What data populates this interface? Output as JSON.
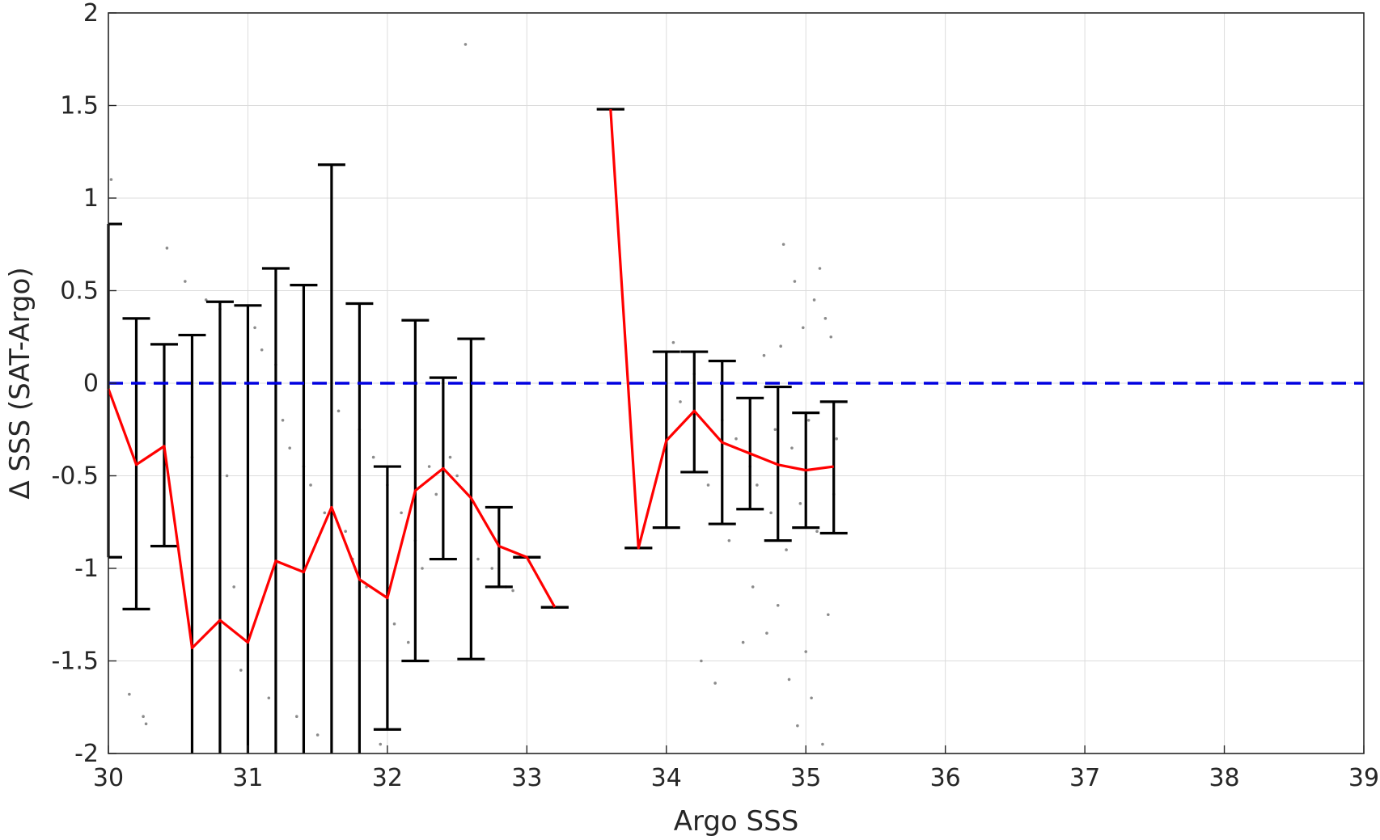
{
  "chart_data": {
    "type": "scatter",
    "title": "",
    "xlabel": "Argo SSS",
    "ylabel": "Δ SSS (SAT-Argo)",
    "xlim": [
      30,
      39
    ],
    "ylim": [
      -2,
      2
    ],
    "xticks": [
      "30",
      "31",
      "32",
      "33",
      "34",
      "35",
      "36",
      "37",
      "38",
      "39"
    ],
    "yticks": [
      "-2",
      "-1.5",
      "-1",
      "-0.5",
      "0",
      "0.5",
      "1",
      "1.5",
      "2"
    ],
    "grid": true,
    "legend": "none",
    "colors": {
      "scatter": "#8c8c8c",
      "mean_line": "#ff0000",
      "error_bars": "#000000",
      "reference_line": "#0000e0",
      "grid": "#dcdcdc",
      "axis": "#262626"
    },
    "reference_line": {
      "y": 0,
      "style": "dashed"
    },
    "mean_line": {
      "segments": [
        [
          {
            "x": 30.0,
            "y": -0.03
          },
          {
            "x": 30.2,
            "y": -0.44
          },
          {
            "x": 30.4,
            "y": -0.34
          },
          {
            "x": 30.6,
            "y": -1.43
          },
          {
            "x": 30.8,
            "y": -1.28
          },
          {
            "x": 31.0,
            "y": -1.4
          },
          {
            "x": 31.2,
            "y": -0.96
          },
          {
            "x": 31.4,
            "y": -1.02
          },
          {
            "x": 31.6,
            "y": -0.67
          },
          {
            "x": 31.8,
            "y": -1.06
          },
          {
            "x": 32.0,
            "y": -1.16
          },
          {
            "x": 32.2,
            "y": -0.58
          },
          {
            "x": 32.4,
            "y": -0.46
          },
          {
            "x": 32.6,
            "y": -0.62
          },
          {
            "x": 32.8,
            "y": -0.88
          },
          {
            "x": 33.0,
            "y": -0.94
          },
          {
            "x": 33.2,
            "y": -1.21
          }
        ],
        [
          {
            "x": 33.6,
            "y": 1.48
          },
          {
            "x": 33.8,
            "y": -0.89
          },
          {
            "x": 34.0,
            "y": -0.31
          },
          {
            "x": 34.2,
            "y": -0.15
          },
          {
            "x": 34.4,
            "y": -0.32
          },
          {
            "x": 34.6,
            "y": -0.38
          },
          {
            "x": 34.8,
            "y": -0.44
          },
          {
            "x": 35.0,
            "y": -0.47
          },
          {
            "x": 35.2,
            "y": -0.45
          }
        ]
      ]
    },
    "error_bars": [
      {
        "x": 30.0,
        "low": -0.94,
        "high": 0.86
      },
      {
        "x": 30.2,
        "low": -1.22,
        "high": 0.35
      },
      {
        "x": 30.4,
        "low": -0.88,
        "high": 0.21
      },
      {
        "x": 30.6,
        "low": -2.0,
        "high": 0.26
      },
      {
        "x": 30.8,
        "low": -2.0,
        "high": 0.44
      },
      {
        "x": 31.0,
        "low": -2.0,
        "high": 0.42
      },
      {
        "x": 31.2,
        "low": -2.0,
        "high": 0.62
      },
      {
        "x": 31.4,
        "low": -2.0,
        "high": 0.53
      },
      {
        "x": 31.6,
        "low": -2.0,
        "high": 1.18
      },
      {
        "x": 31.8,
        "low": -2.0,
        "high": 0.43
      },
      {
        "x": 32.0,
        "low": -1.87,
        "high": -0.45
      },
      {
        "x": 32.2,
        "low": -1.5,
        "high": 0.34
      },
      {
        "x": 32.4,
        "low": -0.95,
        "high": 0.03
      },
      {
        "x": 32.6,
        "low": -1.49,
        "high": 0.24
      },
      {
        "x": 32.8,
        "low": -1.1,
        "high": -0.67
      },
      {
        "x": 33.0,
        "low": -0.94,
        "high": -0.94
      },
      {
        "x": 33.2,
        "low": -1.21,
        "high": -1.21
      },
      {
        "x": 33.6,
        "low": 1.48,
        "high": 1.48
      },
      {
        "x": 33.8,
        "low": -0.89,
        "high": -0.89
      },
      {
        "x": 34.0,
        "low": -0.78,
        "high": 0.17
      },
      {
        "x": 34.2,
        "low": -0.48,
        "high": 0.17
      },
      {
        "x": 34.4,
        "low": -0.76,
        "high": 0.12
      },
      {
        "x": 34.6,
        "low": -0.68,
        "high": -0.08
      },
      {
        "x": 34.8,
        "low": -0.85,
        "high": -0.02
      },
      {
        "x": 35.0,
        "low": -0.78,
        "high": -0.16
      },
      {
        "x": 35.2,
        "low": -0.81,
        "high": -0.1
      }
    ],
    "scatter_points": [
      {
        "x": 30.02,
        "y": 1.1
      },
      {
        "x": 30.15,
        "y": -1.68
      },
      {
        "x": 30.25,
        "y": -1.8
      },
      {
        "x": 30.27,
        "y": -1.84
      },
      {
        "x": 30.42,
        "y": 0.73
      },
      {
        "x": 30.55,
        "y": 0.55
      },
      {
        "x": 30.6,
        "y": -0.4
      },
      {
        "x": 30.7,
        "y": 0.45
      },
      {
        "x": 30.8,
        "y": 0.4
      },
      {
        "x": 30.85,
        "y": -0.5
      },
      {
        "x": 30.9,
        "y": -1.1
      },
      {
        "x": 30.95,
        "y": -1.55
      },
      {
        "x": 31.05,
        "y": 0.3
      },
      {
        "x": 31.1,
        "y": 0.18
      },
      {
        "x": 31.15,
        "y": -1.7
      },
      {
        "x": 31.2,
        "y": 0.1
      },
      {
        "x": 31.25,
        "y": -0.2
      },
      {
        "x": 31.3,
        "y": -0.35
      },
      {
        "x": 31.35,
        "y": -1.8
      },
      {
        "x": 31.4,
        "y": -0.45
      },
      {
        "x": 31.45,
        "y": -0.55
      },
      {
        "x": 31.5,
        "y": -1.9
      },
      {
        "x": 31.55,
        "y": -0.7
      },
      {
        "x": 31.65,
        "y": -0.15
      },
      {
        "x": 31.7,
        "y": -0.8
      },
      {
        "x": 31.75,
        "y": -0.95
      },
      {
        "x": 31.8,
        "y": -0.25
      },
      {
        "x": 31.85,
        "y": -1.1
      },
      {
        "x": 31.9,
        "y": -0.4
      },
      {
        "x": 31.95,
        "y": -1.95
      },
      {
        "x": 32.0,
        "y": -0.55
      },
      {
        "x": 32.05,
        "y": -1.3
      },
      {
        "x": 32.1,
        "y": -0.7
      },
      {
        "x": 32.15,
        "y": -1.4
      },
      {
        "x": 32.2,
        "y": -0.85
      },
      {
        "x": 32.25,
        "y": -1.0
      },
      {
        "x": 32.3,
        "y": -0.45
      },
      {
        "x": 32.35,
        "y": -0.6
      },
      {
        "x": 32.45,
        "y": -0.4
      },
      {
        "x": 32.5,
        "y": -0.5
      },
      {
        "x": 32.56,
        "y": 1.83
      },
      {
        "x": 32.65,
        "y": -0.95
      },
      {
        "x": 32.75,
        "y": -1.0
      },
      {
        "x": 32.85,
        "y": -1.1
      },
      {
        "x": 32.9,
        "y": -1.12
      },
      {
        "x": 34.05,
        "y": 0.22
      },
      {
        "x": 34.1,
        "y": -0.1
      },
      {
        "x": 34.2,
        "y": 0.05
      },
      {
        "x": 34.25,
        "y": -1.5
      },
      {
        "x": 34.3,
        "y": -0.55
      },
      {
        "x": 34.35,
        "y": -1.62
      },
      {
        "x": 34.4,
        "y": -0.2
      },
      {
        "x": 34.45,
        "y": -0.85
      },
      {
        "x": 34.5,
        "y": -0.3
      },
      {
        "x": 34.55,
        "y": -1.4
      },
      {
        "x": 34.6,
        "y": -0.45
      },
      {
        "x": 34.62,
        "y": -1.1
      },
      {
        "x": 34.65,
        "y": -0.55
      },
      {
        "x": 34.7,
        "y": 0.15
      },
      {
        "x": 34.72,
        "y": -1.35
      },
      {
        "x": 34.75,
        "y": -0.7
      },
      {
        "x": 34.78,
        "y": -0.25
      },
      {
        "x": 34.8,
        "y": -1.2
      },
      {
        "x": 34.82,
        "y": 0.2
      },
      {
        "x": 34.84,
        "y": 0.75
      },
      {
        "x": 34.86,
        "y": -0.9
      },
      {
        "x": 34.88,
        "y": -1.6
      },
      {
        "x": 34.9,
        "y": -0.35
      },
      {
        "x": 34.92,
        "y": 0.55
      },
      {
        "x": 34.94,
        "y": -1.85
      },
      {
        "x": 34.96,
        "y": -0.65
      },
      {
        "x": 34.98,
        "y": 0.3
      },
      {
        "x": 35.0,
        "y": -1.45
      },
      {
        "x": 35.02,
        "y": -0.2
      },
      {
        "x": 35.04,
        "y": -1.7
      },
      {
        "x": 35.06,
        "y": 0.45
      },
      {
        "x": 35.08,
        "y": -0.8
      },
      {
        "x": 35.1,
        "y": 0.62
      },
      {
        "x": 35.12,
        "y": -1.95
      },
      {
        "x": 35.14,
        "y": 0.35
      },
      {
        "x": 35.16,
        "y": -1.25
      },
      {
        "x": 35.18,
        "y": 0.25
      },
      {
        "x": 35.2,
        "y": -0.6
      },
      {
        "x": 35.22,
        "y": -0.3
      }
    ]
  }
}
